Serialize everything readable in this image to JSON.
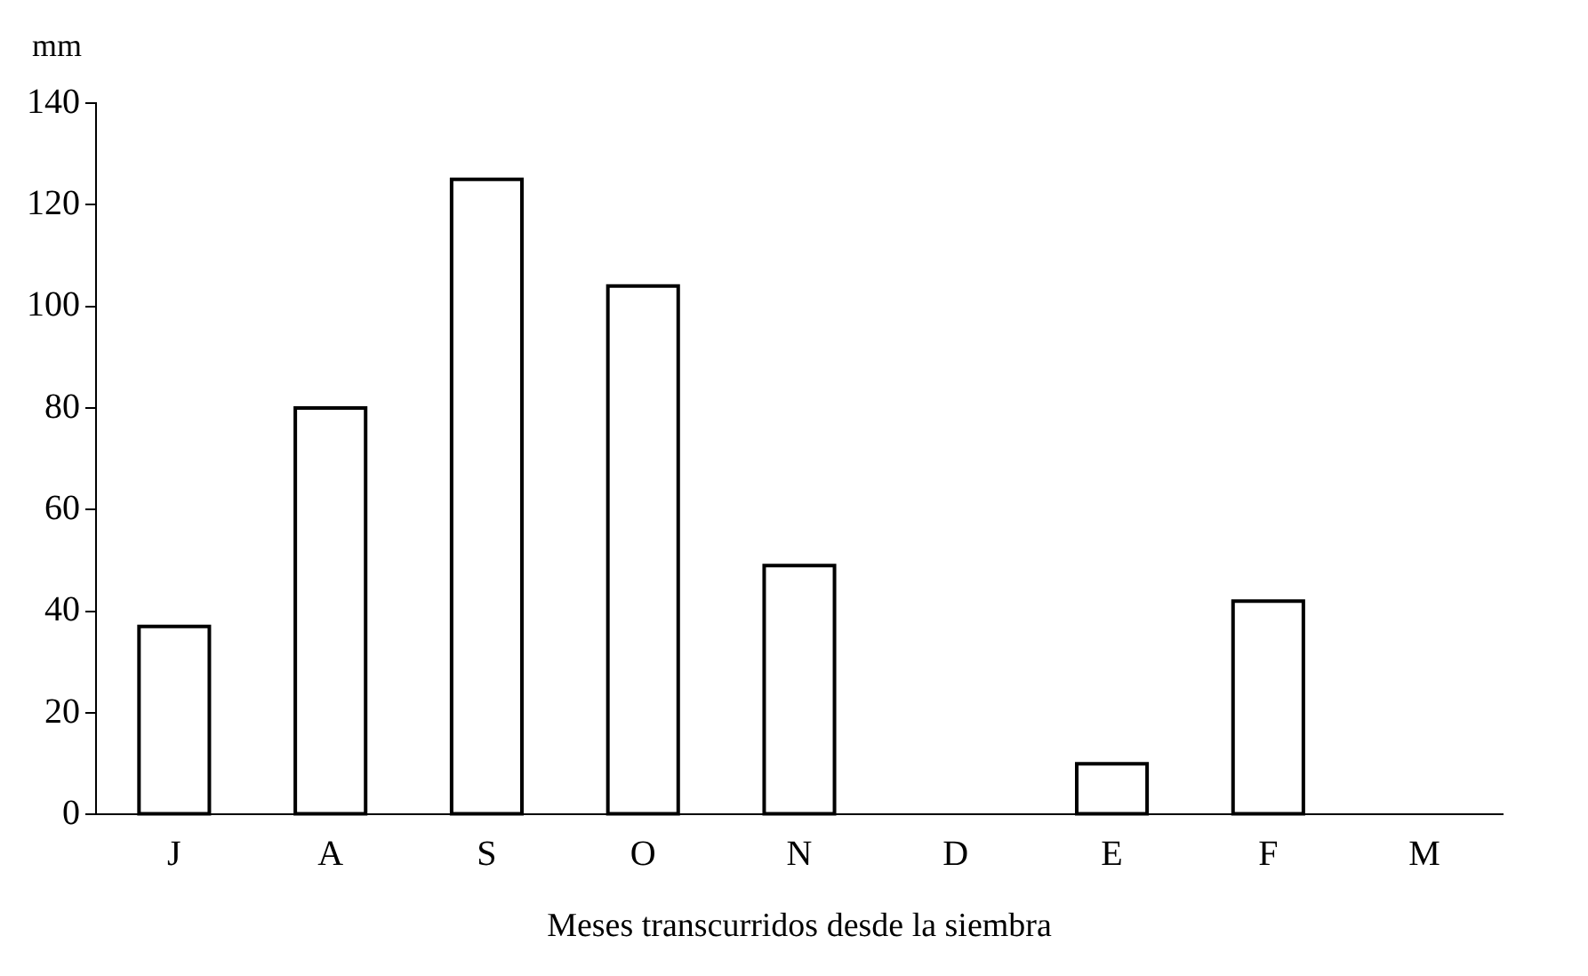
{
  "chart_data": {
    "type": "bar",
    "ylabel": "mm",
    "xlabel": "Meses transcurridos desde la siembra",
    "categories": [
      "J",
      "A",
      "S",
      "O",
      "N",
      "D",
      "E",
      "F",
      "M"
    ],
    "values": [
      37,
      80,
      125,
      104,
      49,
      0,
      10,
      42,
      0
    ],
    "color": "#ffffff",
    "ylim": [
      0,
      140
    ],
    "yticks": [
      0,
      20,
      40,
      60,
      80,
      100,
      120,
      140
    ],
    "grid": false,
    "legend": false
  }
}
